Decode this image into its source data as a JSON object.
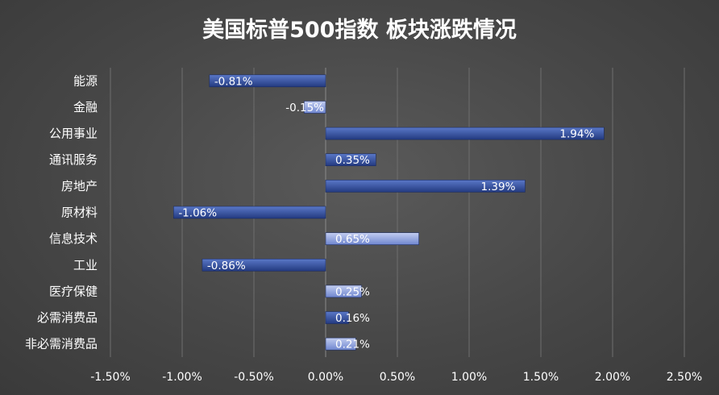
{
  "chart_data": {
    "type": "bar",
    "orientation": "horizontal",
    "title": "美国标普500指数 板块涨跌情况",
    "categories": [
      "能源",
      "金融",
      "公用事业",
      "通讯服务",
      "房地产",
      "原材料",
      "信息技术",
      "工业",
      "医疗保健",
      "必需消费品",
      "非必需消费品"
    ],
    "values": [
      -0.81,
      -0.15,
      1.94,
      0.35,
      1.39,
      -1.06,
      0.65,
      -0.86,
      0.25,
      0.16,
      0.21
    ],
    "data_labels": [
      "-0.81%",
      "-0.15%",
      "1.94%",
      "0.35%",
      "1.39%",
      "-1.06%",
      "0.65%",
      "-0.86%",
      "0.25%",
      "0.16%",
      "0.21%"
    ],
    "bar_styles": [
      "dark",
      "light",
      "dark",
      "dark",
      "dark",
      "dark",
      "light",
      "dark",
      "light",
      "dark",
      "light"
    ],
    "xlim": [
      -1.5,
      2.5
    ],
    "xticks": [
      -1.5,
      -1.0,
      -0.5,
      0.0,
      0.5,
      1.0,
      1.5,
      2.0,
      2.5
    ],
    "xtick_labels": [
      "-1.50%",
      "-1.00%",
      "-0.50%",
      "0.00%",
      "0.50%",
      "1.00%",
      "1.50%",
      "2.00%",
      "2.50%"
    ],
    "grid": true,
    "colors": {
      "dark_bar_top": "#5a78c8",
      "dark_bar_bottom": "#233a80",
      "light_bar_top": "#c2cdf0",
      "light_bar_bottom": "#6f86cf",
      "background": "#4a4a4a"
    }
  }
}
